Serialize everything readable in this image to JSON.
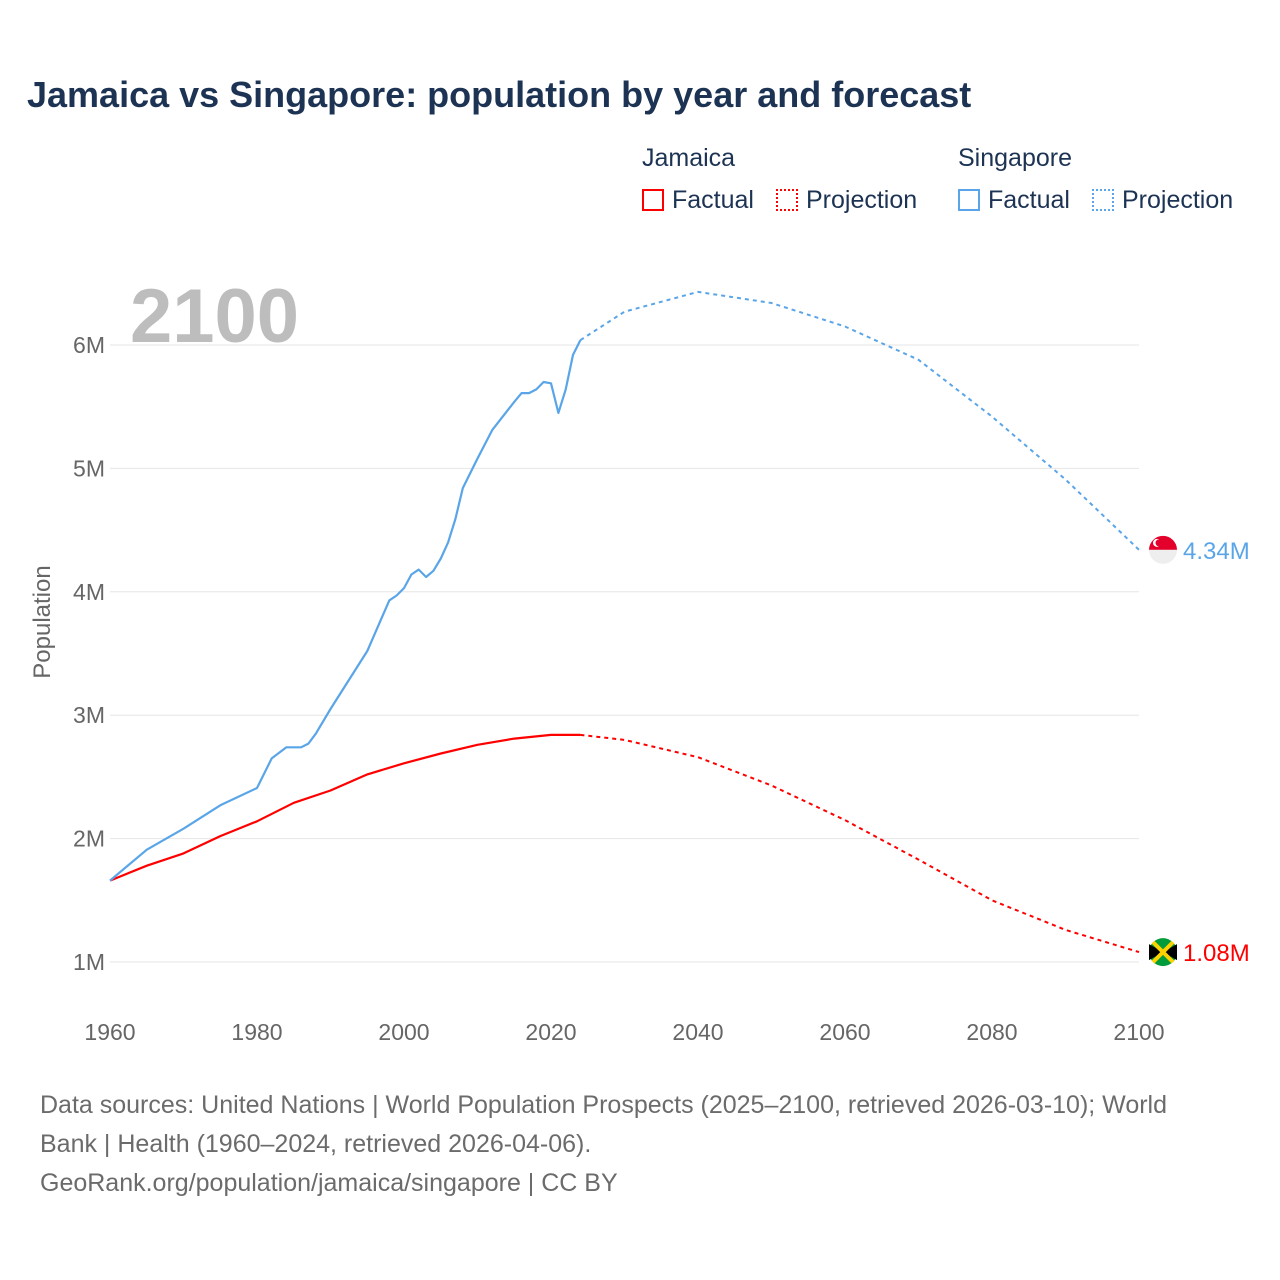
{
  "title": "Jamaica vs Singapore: population by year and forecast",
  "legend": {
    "jamaica": "Jamaica",
    "singapore": "Singapore",
    "factual": "Factual",
    "projection": "Projection"
  },
  "colors": {
    "jamaica": "#ff0000",
    "singapore": "#5aa5e8"
  },
  "footer": {
    "line1": "Data sources: United Nations | World Population Prospects (2025–2100, retrieved 2026-03-10); World Bank | Health (1960–2024, retrieved 2026-04-06).",
    "line2": "GeoRank.org/population/jamaica/singapore | CC BY"
  },
  "chart_data": {
    "type": "line",
    "title": "Jamaica vs Singapore: population by year and forecast",
    "year_label": "2100",
    "ylabel": "Population",
    "xlim": [
      1960,
      2100
    ],
    "ylim": [
      1,
      6
    ],
    "xticks": [
      "1960",
      "1980",
      "2000",
      "2020",
      "2040",
      "2060",
      "2080",
      "2100"
    ],
    "yticks": [
      "1M",
      "2M",
      "3M",
      "4M",
      "5M",
      "6M"
    ],
    "grid": true,
    "series": [
      {
        "name": "Jamaica",
        "end_label": "1.08M",
        "factual": {
          "x": [
            1960,
            1965,
            1970,
            1975,
            1980,
            1985,
            1990,
            1995,
            2000,
            2005,
            2010,
            2015,
            2020,
            2024
          ],
          "y": [
            1.66,
            1.78,
            1.88,
            2.02,
            2.14,
            2.29,
            2.39,
            2.52,
            2.61,
            2.69,
            2.76,
            2.81,
            2.84,
            2.84
          ]
        },
        "projection": {
          "x": [
            2024,
            2030,
            2040,
            2050,
            2060,
            2070,
            2080,
            2090,
            2100
          ],
          "y": [
            2.84,
            2.8,
            2.66,
            2.43,
            2.15,
            1.83,
            1.5,
            1.26,
            1.08
          ]
        }
      },
      {
        "name": "Singapore",
        "end_label": "4.34M",
        "factual": {
          "x": [
            1960,
            1965,
            1970,
            1975,
            1980,
            1982,
            1984,
            1986,
            1987,
            1988,
            1990,
            1995,
            1998,
            1999,
            2000,
            2001,
            2002,
            2003,
            2004,
            2005,
            2006,
            2007,
            2008,
            2010,
            2012,
            2015,
            2016,
            2017,
            2018,
            2019,
            2020,
            2021,
            2022,
            2023,
            2024
          ],
          "y": [
            1.66,
            1.91,
            2.08,
            2.27,
            2.41,
            2.65,
            2.74,
            2.74,
            2.77,
            2.85,
            3.05,
            3.52,
            3.93,
            3.97,
            4.03,
            4.14,
            4.18,
            4.12,
            4.17,
            4.27,
            4.4,
            4.59,
            4.84,
            5.08,
            5.31,
            5.54,
            5.61,
            5.61,
            5.64,
            5.7,
            5.69,
            5.45,
            5.64,
            5.92,
            6.04
          ]
        },
        "projection": {
          "x": [
            2024,
            2030,
            2040,
            2050,
            2060,
            2070,
            2080,
            2090,
            2100
          ],
          "y": [
            6.04,
            6.27,
            6.43,
            6.34,
            6.15,
            5.88,
            5.42,
            4.91,
            4.34
          ]
        }
      }
    ]
  }
}
